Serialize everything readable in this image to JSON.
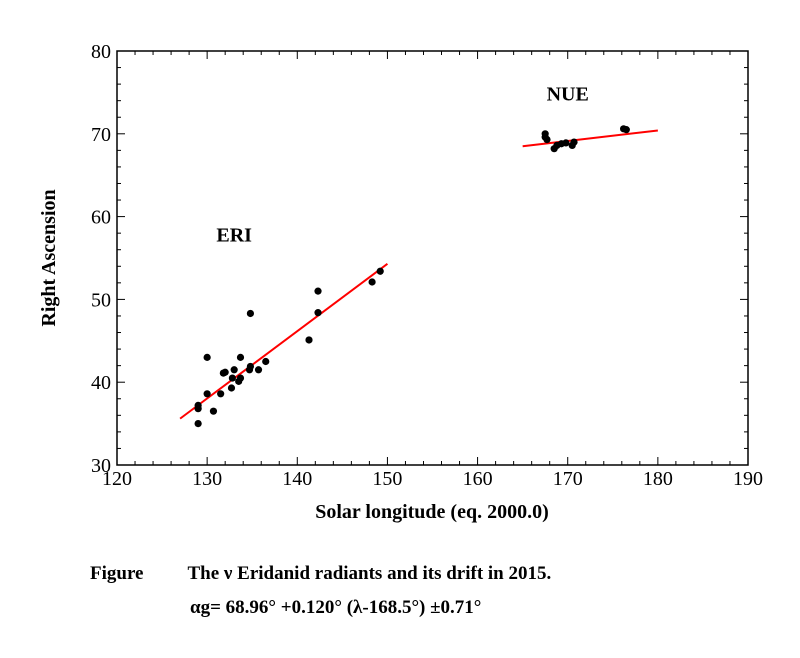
{
  "chart_data": {
    "type": "scatter",
    "title": "",
    "xlabel": "Solar longitude (eq. 2000.0)",
    "ylabel": "Right Ascension",
    "xlim": [
      120,
      190
    ],
    "ylim": [
      30,
      80
    ],
    "xticks": [
      120,
      130,
      140,
      150,
      160,
      170,
      180,
      190
    ],
    "yticks": [
      30,
      40,
      50,
      60,
      70,
      80
    ],
    "grid": false,
    "series": [
      {
        "name": "ERI",
        "x": [
          129.0,
          129.0,
          129.0,
          130.0,
          130.0,
          130.7,
          131.5,
          131.8,
          132.0,
          132.7,
          132.8,
          133.0,
          133.5,
          133.7,
          133.7,
          134.7,
          134.8,
          134.8,
          135.7,
          136.5,
          141.3,
          142.3,
          142.3,
          148.3,
          149.2
        ],
        "y": [
          35.0,
          36.8,
          37.2,
          38.6,
          43.0,
          36.5,
          38.6,
          41.1,
          41.2,
          39.3,
          40.5,
          41.5,
          40.1,
          40.5,
          43.0,
          41.5,
          41.9,
          48.3,
          41.5,
          42.5,
          45.1,
          48.4,
          51.0,
          52.1,
          53.4
        ]
      },
      {
        "name": "NUE",
        "x": [
          167.5,
          167.5,
          167.7,
          168.5,
          168.8,
          169.3,
          169.8,
          170.5,
          170.7,
          176.2,
          176.5
        ],
        "y": [
          69.6,
          70.0,
          69.3,
          68.2,
          68.6,
          68.8,
          68.9,
          68.6,
          69.0,
          70.6,
          70.5
        ]
      }
    ],
    "fit_lines": [
      {
        "name": "ERI fit",
        "x": [
          127.0,
          150.0
        ],
        "y": [
          35.6,
          54.3
        ],
        "color": "#ff0000"
      },
      {
        "name": "NUE fit",
        "x": [
          165.0,
          180.0
        ],
        "y": [
          68.5,
          70.4
        ],
        "color": "#ff0000"
      }
    ],
    "annotations": [
      {
        "text": "ERI",
        "x": 133.0,
        "y": 57.0
      },
      {
        "text": "NUE",
        "x": 170.0,
        "y": 74.0
      }
    ],
    "marker_color": "#000000"
  },
  "caption": {
    "figure_label": "Figure",
    "title_nu": "The ν Eridanid radiants and its drift in 2015.",
    "formula": "αg= 68.96° +0.120° (λ-168.5°) ±0.71°"
  }
}
